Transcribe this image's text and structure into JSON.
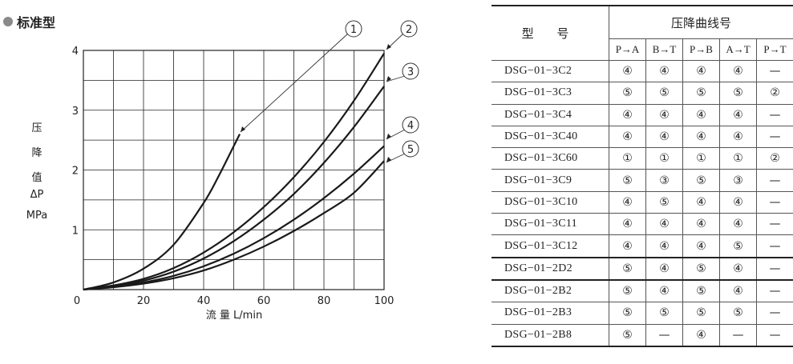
{
  "section_label": "标准型",
  "chart_data": {
    "type": "line",
    "xlabel": "流 量  L/min",
    "ylabel_lines": [
      "压",
      "降",
      "值",
      "ΔP",
      "MPa"
    ],
    "xlim": [
      0,
      100
    ],
    "ylim": [
      0,
      4
    ],
    "xticks": [
      0,
      20,
      40,
      60,
      80,
      100
    ],
    "yticks": [
      1,
      2,
      3,
      4
    ],
    "grid": true,
    "series": [
      {
        "name": "1",
        "x": [
          0,
          10,
          20,
          30,
          40,
          45,
          50,
          52
        ],
        "y": [
          0,
          0.12,
          0.35,
          0.75,
          1.45,
          1.9,
          2.4,
          2.6
        ]
      },
      {
        "name": "2",
        "x": [
          0,
          10,
          20,
          30,
          40,
          50,
          60,
          70,
          80,
          90,
          100
        ],
        "y": [
          0,
          0.07,
          0.18,
          0.36,
          0.62,
          0.96,
          1.38,
          1.88,
          2.47,
          3.16,
          3.95
        ]
      },
      {
        "name": "3",
        "x": [
          0,
          10,
          20,
          30,
          40,
          50,
          60,
          70,
          80,
          90,
          100
        ],
        "y": [
          0,
          0.06,
          0.15,
          0.3,
          0.52,
          0.81,
          1.17,
          1.6,
          2.12,
          2.72,
          3.4
        ]
      },
      {
        "name": "4",
        "x": [
          0,
          10,
          20,
          30,
          40,
          50,
          60,
          70,
          80,
          90,
          100
        ],
        "y": [
          0,
          0.05,
          0.12,
          0.23,
          0.39,
          0.6,
          0.86,
          1.17,
          1.53,
          1.94,
          2.4
        ]
      },
      {
        "name": "5",
        "x": [
          0,
          10,
          20,
          30,
          40,
          50,
          60,
          70,
          80,
          90,
          100
        ],
        "y": [
          0,
          0.04,
          0.1,
          0.19,
          0.32,
          0.5,
          0.72,
          0.98,
          1.28,
          1.62,
          2.15
        ]
      }
    ],
    "callouts": [
      "①",
      "②",
      "③",
      "④",
      "⑤"
    ]
  },
  "table": {
    "model_header": "型 号",
    "curve_header": "压降曲线号",
    "ports": [
      "P→A",
      "B→T",
      "P→B",
      "A→T",
      "P→T"
    ],
    "rows": [
      {
        "model": "DSG−01−3C2",
        "values": [
          "④",
          "④",
          "④",
          "④",
          "—"
        ]
      },
      {
        "model": "DSG−01−3C3",
        "values": [
          "⑤",
          "⑤",
          "⑤",
          "⑤",
          "②"
        ]
      },
      {
        "model": "DSG−01−3C4",
        "values": [
          "④",
          "④",
          "④",
          "④",
          "—"
        ]
      },
      {
        "model": "DSG−01−3C40",
        "values": [
          "④",
          "④",
          "④",
          "④",
          "—"
        ]
      },
      {
        "model": "DSG−01−3C60",
        "values": [
          "①",
          "①",
          "①",
          "①",
          "②"
        ]
      },
      {
        "model": "DSG−01−3C9",
        "values": [
          "⑤",
          "③",
          "⑤",
          "③",
          "—"
        ]
      },
      {
        "model": "DSG−01−3C10",
        "values": [
          "④",
          "⑤",
          "④",
          "④",
          "—"
        ]
      },
      {
        "model": "DSG−01−3C11",
        "values": [
          "④",
          "④",
          "④",
          "④",
          "—"
        ]
      },
      {
        "model": "DSG−01−3C12",
        "values": [
          "④",
          "④",
          "④",
          "⑤",
          "—"
        ]
      },
      {
        "model": "DSG−01−2D2",
        "values": [
          "⑤",
          "④",
          "⑤",
          "④",
          "—"
        ]
      },
      {
        "model": "DSG−01−2B2",
        "values": [
          "⑤",
          "④",
          "⑤",
          "④",
          "—"
        ]
      },
      {
        "model": "DSG−01−2B3",
        "values": [
          "⑤",
          "⑤",
          "⑤",
          "⑤",
          "—"
        ]
      },
      {
        "model": "DSG−01−2B8",
        "values": [
          "⑤",
          "—",
          "④",
          "—",
          "—"
        ]
      }
    ]
  }
}
